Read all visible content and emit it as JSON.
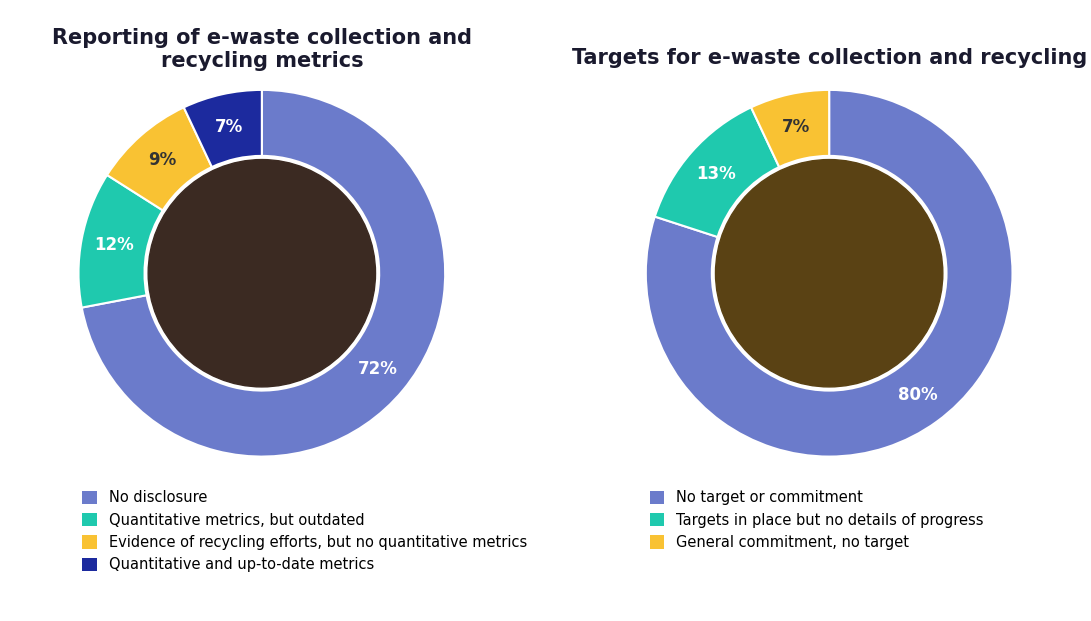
{
  "chart_data": [
    {
      "type": "donut",
      "title": "Reporting of e-waste collection and recycling metrics",
      "categories": [
        "No disclosure",
        "Quantitative metrics, but outdated",
        "Evidence of recycling efforts, but no quantitative metrics",
        "Quantitative and up-to-date metrics"
      ],
      "values": [
        72,
        12,
        9,
        7
      ],
      "value_labels": [
        "72%",
        "12%",
        "9%",
        "7%"
      ],
      "colors": [
        "#6b7bcb",
        "#1fc9ae",
        "#f9c233",
        "#1c2a9e"
      ],
      "data_labels": true,
      "legend": "bottom"
    },
    {
      "type": "donut",
      "title": "Targets for e-waste collection and recycling",
      "categories": [
        "No target or commitment",
        "Targets in place but no details of progress",
        "General commitment, no target"
      ],
      "values": [
        80,
        13,
        7
      ],
      "value_labels": [
        "80%",
        "13%",
        "7%"
      ],
      "colors": [
        "#6b7bcb",
        "#1fc9ae",
        "#f9c233"
      ],
      "data_labels": true,
      "legend": "bottom"
    }
  ]
}
